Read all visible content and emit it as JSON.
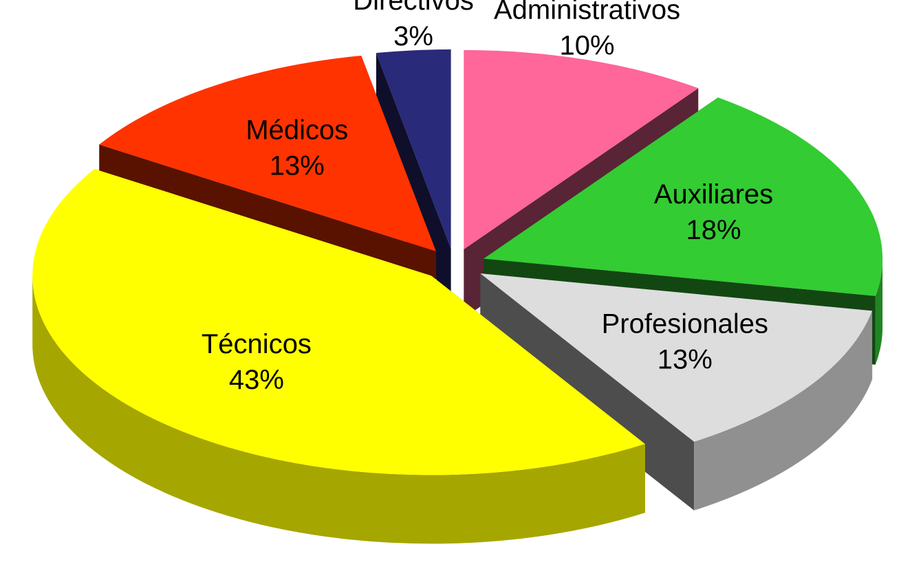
{
  "chart_data": {
    "type": "pie3d",
    "categories": [
      "Administrativos",
      "Auxiliares",
      "Profesionales",
      "Técnicos",
      "Médicos",
      "Directivos"
    ],
    "values": [
      10,
      18,
      13,
      43,
      13,
      3
    ],
    "value_labels": [
      "10%",
      "18%",
      "13%",
      "43%",
      "13%",
      "3%"
    ],
    "colors": [
      "#ff6699",
      "#33cc33",
      "#dddddd",
      "#ffff00",
      "#ff3300",
      "#2a2a7a"
    ]
  }
}
